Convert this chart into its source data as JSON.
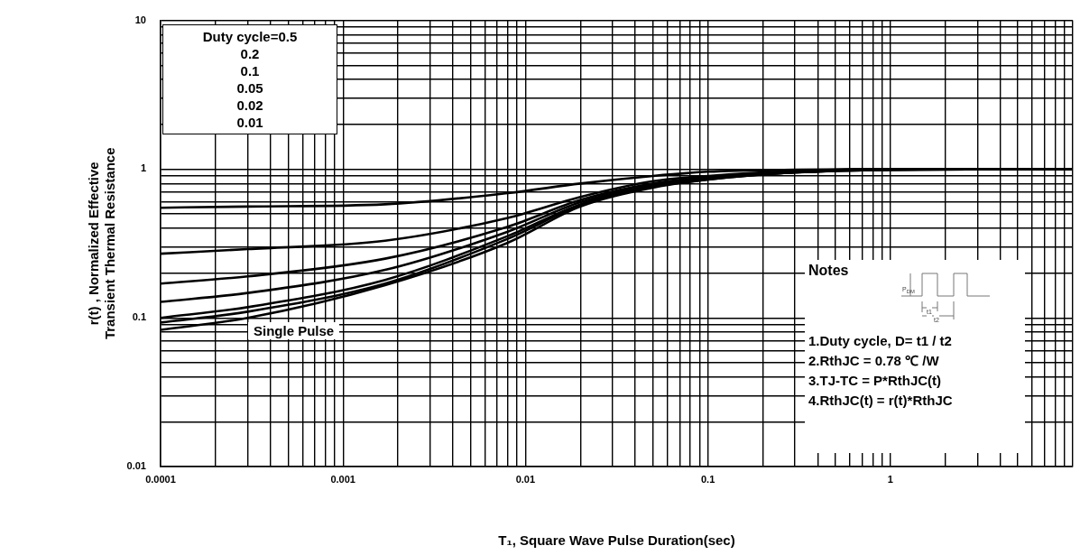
{
  "chart_data": {
    "type": "line",
    "xlabel": "T₁, Square Wave Pulse Duration(sec)",
    "ylabel": "r(t) , Normalized Effective\nTransient Thermal Resistance",
    "log": "xy",
    "grid": true,
    "legend": false,
    "marker": "none",
    "line_style": "solid",
    "xlim": [
      0.0001,
      10
    ],
    "ylim": [
      0.01,
      10
    ],
    "xticks": [
      0.0001,
      {
        "value": 0.0002,
        "label": null
      },
      {
        "value": 0.0003,
        "label": null
      },
      {
        "value": 0.0004,
        "label": null
      },
      {
        "value": 0.0005,
        "label": null
      },
      {
        "value": 0.0006,
        "label": null
      },
      {
        "value": 0.0007,
        "label": null
      },
      {
        "value": 0.0008,
        "label": null
      },
      {
        "value": 0.0009,
        "label": null
      },
      0.001,
      {
        "value": 0.002,
        "label": null
      },
      {
        "value": 0.003,
        "label": null
      },
      {
        "value": 0.004,
        "label": null
      },
      {
        "value": 0.005,
        "label": null
      },
      {
        "value": 0.006,
        "label": null
      },
      {
        "value": 0.007,
        "label": null
      },
      {
        "value": 0.008,
        "label": null
      },
      {
        "value": 0.009,
        "label": null
      },
      0.01,
      {
        "value": 0.02,
        "label": null
      },
      {
        "value": 0.03,
        "label": null
      },
      {
        "value": 0.04,
        "label": null
      },
      {
        "value": 0.05,
        "label": null
      },
      {
        "value": 0.06,
        "label": null
      },
      {
        "value": 0.07,
        "label": null
      },
      {
        "value": 0.08,
        "label": null
      },
      {
        "value": 0.09,
        "label": null
      },
      0.1,
      {
        "value": 0.2,
        "label": null
      },
      {
        "value": 0.3,
        "label": null
      },
      {
        "value": 0.4,
        "label": null
      },
      {
        "value": 0.5,
        "label": null
      },
      {
        "value": 0.6,
        "label": null
      },
      {
        "value": 0.7,
        "label": null
      },
      {
        "value": 0.8,
        "label": null
      },
      {
        "value": 0.9,
        "label": null
      },
      1,
      {
        "value": 2,
        "label": null
      },
      {
        "value": 3,
        "label": null
      },
      {
        "value": 4,
        "label": null
      },
      {
        "value": 5,
        "label": null
      },
      {
        "value": 6,
        "label": null
      },
      {
        "value": 7,
        "label": null
      },
      {
        "value": 8,
        "label": null
      },
      {
        "value": 9,
        "label": null
      },
      {
        "value": 10,
        "label": null
      }
    ],
    "yticks": [
      0.01,
      {
        "value": 0.02,
        "label": null
      },
      {
        "value": 0.03,
        "label": null
      },
      {
        "value": 0.04,
        "label": null
      },
      {
        "value": 0.05,
        "label": null
      },
      {
        "value": 0.06,
        "label": null
      },
      {
        "value": 0.07,
        "label": null
      },
      {
        "value": 0.08,
        "label": null
      },
      {
        "value": 0.09,
        "label": null
      },
      0.1,
      {
        "value": 0.2,
        "label": null
      },
      {
        "value": 0.3,
        "label": null
      },
      {
        "value": 0.4,
        "label": null
      },
      {
        "value": 0.5,
        "label": null
      },
      {
        "value": 0.6,
        "label": null
      },
      {
        "value": 0.7,
        "label": null
      },
      {
        "value": 0.8,
        "label": null
      },
      {
        "value": 0.9,
        "label": null
      },
      1,
      {
        "value": 2,
        "label": null
      },
      {
        "value": 3,
        "label": null
      },
      {
        "value": 4,
        "label": null
      },
      {
        "value": 5,
        "label": null
      },
      {
        "value": 6,
        "label": null
      },
      {
        "value": 7,
        "label": null
      },
      {
        "value": 8,
        "label": null
      },
      {
        "value": 9,
        "label": null
      },
      10
    ],
    "x": [
      0.0001,
      0.0003,
      0.0017,
      0.008,
      0.02,
      0.05,
      0.1,
      0.3,
      1,
      10
    ],
    "series": [
      {
        "color": "#000000",
        "values": [
          0.55,
          0.56,
          0.58,
          0.69,
          0.8,
          0.9,
          0.96,
          0.99,
          1,
          1
        ]
      },
      {
        "color": "#000000",
        "values": [
          0.27,
          0.29,
          0.33,
          0.47,
          0.65,
          0.83,
          0.9,
          0.97,
          1,
          1
        ]
      },
      {
        "color": "#000000",
        "values": [
          0.17,
          0.19,
          0.25,
          0.41,
          0.62,
          0.8,
          0.88,
          0.96,
          1,
          1
        ]
      },
      {
        "color": "#000000",
        "values": [
          0.128,
          0.147,
          0.21,
          0.38,
          0.6,
          0.78,
          0.87,
          0.95,
          1,
          1
        ]
      },
      {
        "color": "#000000",
        "values": [
          0.1,
          0.118,
          0.18,
          0.355,
          0.58,
          0.77,
          0.86,
          0.95,
          0.99,
          1
        ]
      },
      {
        "color": "#000000",
        "values": [
          0.093,
          0.11,
          0.17,
          0.34,
          0.57,
          0.76,
          0.85,
          0.95,
          0.99,
          1
        ]
      },
      {
        "color": "#000000",
        "values": [
          0.083,
          0.1,
          0.166,
          0.32,
          0.56,
          0.75,
          0.85,
          0.95,
          0.99,
          1
        ]
      }
    ],
    "annotations": [
      "Duty cycle=0.5",
      "0.2",
      "0.1",
      "0.05",
      "0.02",
      "0.01",
      "Single Pulse",
      "Notes",
      "1.Duty cycle, D= t1 / t2",
      "2.RthJC =  0.78 ℃ /W",
      "3.TJ-TC = P*RthJC(t)",
      "4.RthJC(t) = r(t)*RthJC",
      "P$_{DM}$",
      "t1",
      "t2"
    ]
  }
}
